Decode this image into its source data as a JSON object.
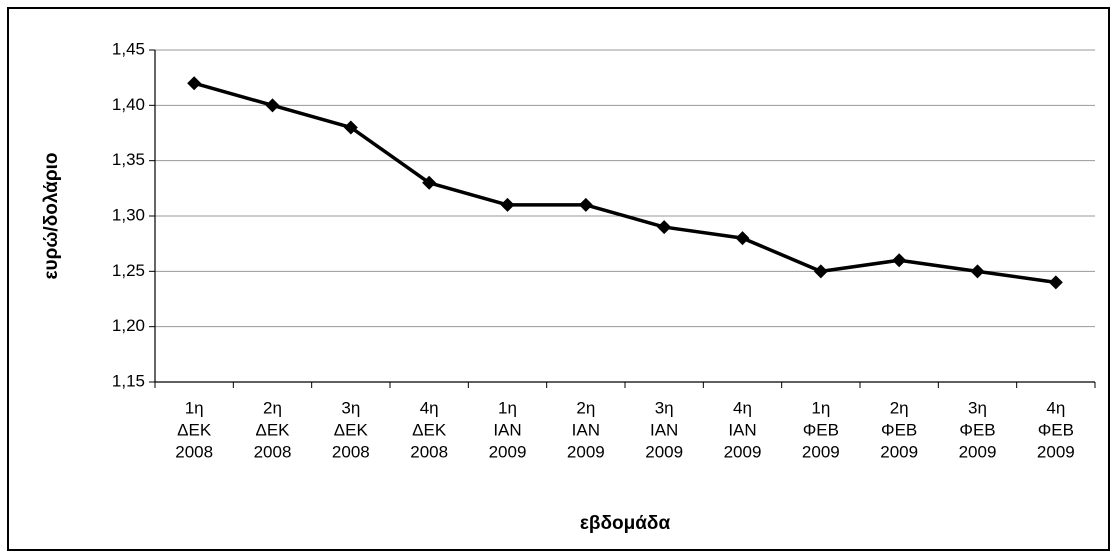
{
  "chart_data": {
    "type": "line",
    "x_label": "εβδομάδα",
    "y_label": "ευρώ/δολάριο",
    "categories": [
      [
        "1η",
        "ΔΕΚ",
        "2008"
      ],
      [
        "2η",
        "ΔΕΚ",
        "2008"
      ],
      [
        "3η",
        "ΔΕΚ",
        "2008"
      ],
      [
        "4η",
        "ΔΕΚ",
        "2008"
      ],
      [
        "1η",
        "ΙΑΝ",
        "2009"
      ],
      [
        "2η",
        "ΙΑΝ",
        "2009"
      ],
      [
        "3η",
        "ΙΑΝ",
        "2009"
      ],
      [
        "4η",
        "ΙΑΝ",
        "2009"
      ],
      [
        "1η",
        "ΦΕΒ",
        "2009"
      ],
      [
        "2η",
        "ΦΕΒ",
        "2009"
      ],
      [
        "3η",
        "ΦΕΒ",
        "2009"
      ],
      [
        "4η",
        "ΦΕΒ",
        "2009"
      ]
    ],
    "values": [
      1.42,
      1.4,
      1.38,
      1.33,
      1.31,
      1.31,
      1.29,
      1.28,
      1.25,
      1.26,
      1.25,
      1.24
    ],
    "color": "#000000",
    "ylim": [
      1.15,
      1.45
    ],
    "yticks": [
      {
        "value": 1.15,
        "label": "1,15"
      },
      {
        "value": 1.2,
        "label": "1,20"
      },
      {
        "value": 1.25,
        "label": "1,25"
      },
      {
        "value": 1.3,
        "label": "1,30"
      },
      {
        "value": 1.35,
        "label": "1,35"
      },
      {
        "value": 1.4,
        "label": "1,40"
      },
      {
        "value": 1.45,
        "label": "1,45"
      }
    ],
    "grid": true
  }
}
